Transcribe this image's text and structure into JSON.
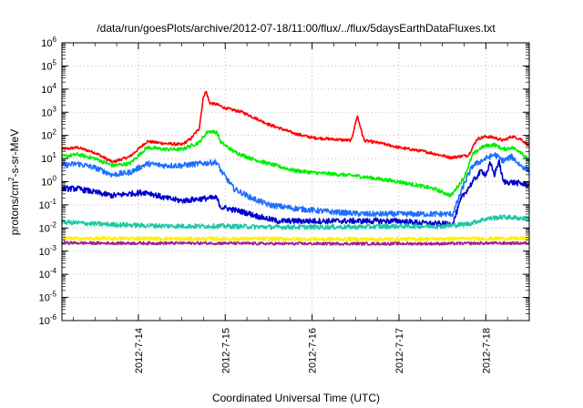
{
  "chart_data": {
    "type": "line",
    "title": "/data/run/goesPlots/archive/2012-07-18/11:00/flux/../flux/5daysEarthDataFluxes.txt",
    "xlabel": "Coordinated Universal Time (UTC)",
    "ylabel": "protons/cm2-s-sr-MeV",
    "ylabel_parts": {
      "pre": "protons/cm",
      "sup": "2",
      "post": "-s-sr-MeV"
    },
    "yscale": "log",
    "ylim_exponents": [
      -6,
      6
    ],
    "y_ticks": [
      {
        "base": "10",
        "exp": "6"
      },
      {
        "base": "10",
        "exp": "5"
      },
      {
        "base": "10",
        "exp": "4"
      },
      {
        "base": "10",
        "exp": "3"
      },
      {
        "base": "10",
        "exp": "2"
      },
      {
        "base": "10",
        "exp": "1"
      },
      {
        "base": "10",
        "exp": "0"
      },
      {
        "base": "10",
        "exp": "-1"
      },
      {
        "base": "10",
        "exp": "-2"
      },
      {
        "base": "10",
        "exp": "-3"
      },
      {
        "base": "10",
        "exp": "-4"
      },
      {
        "base": "10",
        "exp": "-5"
      },
      {
        "base": "10",
        "exp": "-6"
      }
    ],
    "x_unit": "days",
    "xlim": [
      13.12,
      18.5
    ],
    "x_ticks": [
      {
        "value": 14,
        "label": "2012-7-14"
      },
      {
        "value": 15,
        "label": "2012-7-15"
      },
      {
        "value": 16,
        "label": "2012-7-16"
      },
      {
        "value": 17,
        "label": "2012-7-17"
      },
      {
        "value": 18,
        "label": "2012-7-18"
      }
    ],
    "grid": true,
    "series": [
      {
        "color": "#ff0000",
        "noise": 0.06,
        "points": [
          [
            13.12,
            25
          ],
          [
            13.3,
            30
          ],
          [
            13.5,
            18
          ],
          [
            13.7,
            7
          ],
          [
            13.9,
            12
          ],
          [
            14.1,
            55
          ],
          [
            14.3,
            45
          ],
          [
            14.5,
            40
          ],
          [
            14.6,
            70
          ],
          [
            14.7,
            200
          ],
          [
            14.75,
            5000
          ],
          [
            14.78,
            8000
          ],
          [
            14.82,
            2500
          ],
          [
            14.9,
            2200
          ],
          [
            15.0,
            1500
          ],
          [
            15.2,
            1000
          ],
          [
            15.5,
            300
          ],
          [
            15.8,
            120
          ],
          [
            16.0,
            80
          ],
          [
            16.2,
            70
          ],
          [
            16.45,
            60
          ],
          [
            16.52,
            700
          ],
          [
            16.56,
            200
          ],
          [
            16.6,
            60
          ],
          [
            16.8,
            45
          ],
          [
            17.0,
            30
          ],
          [
            17.3,
            20
          ],
          [
            17.6,
            11
          ],
          [
            17.8,
            14
          ],
          [
            17.9,
            70
          ],
          [
            18.0,
            90
          ],
          [
            18.1,
            80
          ],
          [
            18.2,
            60
          ],
          [
            18.3,
            90
          ],
          [
            18.4,
            70
          ],
          [
            18.5,
            35
          ]
        ]
      },
      {
        "color": "#00ee00",
        "noise": 0.08,
        "points": [
          [
            13.12,
            12
          ],
          [
            13.3,
            15
          ],
          [
            13.5,
            10
          ],
          [
            13.7,
            5
          ],
          [
            13.9,
            6
          ],
          [
            14.1,
            30
          ],
          [
            14.3,
            25
          ],
          [
            14.5,
            25
          ],
          [
            14.7,
            50
          ],
          [
            14.8,
            150
          ],
          [
            14.9,
            140
          ],
          [
            14.95,
            50
          ],
          [
            15.1,
            20
          ],
          [
            15.3,
            10
          ],
          [
            15.5,
            6
          ],
          [
            15.8,
            3
          ],
          [
            16.0,
            2.5
          ],
          [
            16.5,
            1.8
          ],
          [
            17.0,
            1.0
          ],
          [
            17.4,
            0.5
          ],
          [
            17.6,
            0.25
          ],
          [
            17.75,
            1.5
          ],
          [
            17.85,
            15
          ],
          [
            17.95,
            30
          ],
          [
            18.0,
            35
          ],
          [
            18.1,
            40
          ],
          [
            18.2,
            25
          ],
          [
            18.3,
            30
          ],
          [
            18.4,
            20
          ],
          [
            18.5,
            8
          ]
        ]
      },
      {
        "color": "#1e6fff",
        "noise": 0.12,
        "points": [
          [
            13.12,
            5
          ],
          [
            13.3,
            6
          ],
          [
            13.5,
            4
          ],
          [
            13.7,
            2
          ],
          [
            13.9,
            2.5
          ],
          [
            14.1,
            6
          ],
          [
            14.3,
            5
          ],
          [
            14.5,
            5
          ],
          [
            14.7,
            6
          ],
          [
            14.9,
            7
          ],
          [
            14.95,
            3
          ],
          [
            15.1,
            0.5
          ],
          [
            15.3,
            0.2
          ],
          [
            15.5,
            0.1
          ],
          [
            15.8,
            0.07
          ],
          [
            16.2,
            0.05
          ],
          [
            16.6,
            0.04
          ],
          [
            17.0,
            0.04
          ],
          [
            17.4,
            0.04
          ],
          [
            17.62,
            0.04
          ],
          [
            17.75,
            0.8
          ],
          [
            17.85,
            5
          ],
          [
            18.0,
            10
          ],
          [
            18.1,
            15
          ],
          [
            18.2,
            8
          ],
          [
            18.3,
            12
          ],
          [
            18.4,
            5
          ],
          [
            18.5,
            3
          ]
        ]
      },
      {
        "color": "#0000cc",
        "noise": 0.12,
        "points": [
          [
            13.12,
            0.5
          ],
          [
            13.3,
            0.5
          ],
          [
            13.5,
            0.35
          ],
          [
            13.7,
            0.25
          ],
          [
            13.9,
            0.3
          ],
          [
            14.1,
            0.35
          ],
          [
            14.3,
            0.2
          ],
          [
            14.5,
            0.15
          ],
          [
            14.7,
            0.18
          ],
          [
            14.9,
            0.2
          ],
          [
            14.95,
            0.08
          ],
          [
            15.2,
            0.05
          ],
          [
            15.4,
            0.03
          ],
          [
            15.6,
            0.02
          ],
          [
            16.0,
            0.02
          ],
          [
            16.5,
            0.02
          ],
          [
            17.0,
            0.02
          ],
          [
            17.4,
            0.015
          ],
          [
            17.62,
            0.015
          ],
          [
            17.72,
            0.2
          ],
          [
            17.85,
            1.0
          ],
          [
            17.95,
            3
          ],
          [
            18.0,
            2
          ],
          [
            18.05,
            6
          ],
          [
            18.1,
            2
          ],
          [
            18.15,
            8
          ],
          [
            18.2,
            1
          ],
          [
            18.35,
            0.9
          ],
          [
            18.5,
            0.7
          ]
        ]
      },
      {
        "color": "#1ec8a5",
        "noise": 0.1,
        "points": [
          [
            13.12,
            0.018
          ],
          [
            13.5,
            0.015
          ],
          [
            14.0,
            0.013
          ],
          [
            14.5,
            0.012
          ],
          [
            15.0,
            0.012
          ],
          [
            15.5,
            0.011
          ],
          [
            16.0,
            0.011
          ],
          [
            16.5,
            0.011
          ],
          [
            17.0,
            0.012
          ],
          [
            17.5,
            0.012
          ],
          [
            17.8,
            0.015
          ],
          [
            18.0,
            0.025
          ],
          [
            18.2,
            0.03
          ],
          [
            18.5,
            0.025
          ]
        ]
      },
      {
        "color": "#ffee00",
        "noise": 0.08,
        "points": [
          [
            13.12,
            0.0035
          ],
          [
            13.5,
            0.0035
          ],
          [
            14.0,
            0.0035
          ],
          [
            14.5,
            0.0034
          ],
          [
            15.0,
            0.0034
          ],
          [
            15.5,
            0.0034
          ],
          [
            16.0,
            0.0033
          ],
          [
            16.5,
            0.0033
          ],
          [
            17.0,
            0.0033
          ],
          [
            17.5,
            0.0034
          ],
          [
            18.0,
            0.0035
          ],
          [
            18.5,
            0.0035
          ]
        ]
      },
      {
        "color": "#a0208f",
        "noise": 0.06,
        "points": [
          [
            13.12,
            0.0023
          ],
          [
            13.5,
            0.0022
          ],
          [
            14.0,
            0.0022
          ],
          [
            14.5,
            0.0022
          ],
          [
            15.0,
            0.0022
          ],
          [
            15.5,
            0.0021
          ],
          [
            16.0,
            0.0021
          ],
          [
            16.5,
            0.0021
          ],
          [
            17.0,
            0.0021
          ],
          [
            17.5,
            0.0021
          ],
          [
            18.0,
            0.0022
          ],
          [
            18.5,
            0.0022
          ]
        ]
      }
    ]
  }
}
